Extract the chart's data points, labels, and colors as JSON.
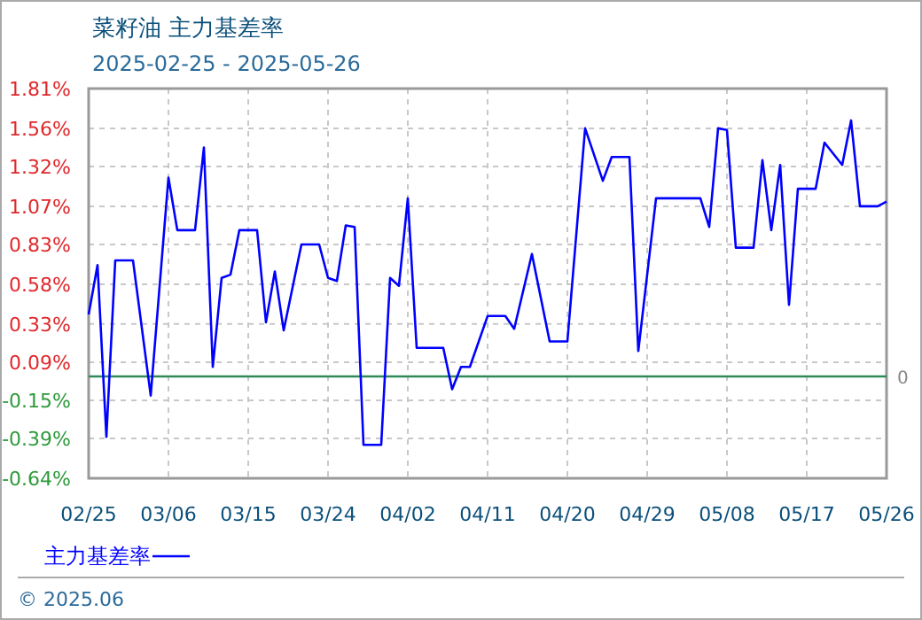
{
  "chart_data": {
    "type": "line",
    "title": "菜籽油 主力基差率",
    "subtitle": "2025-02-25 - 2025-05-26",
    "annotations": [
      "© 2025.06"
    ],
    "x": [
      "2025-02-25",
      "2025-02-26",
      "2025-02-27",
      "2025-02-28",
      "2025-03-02",
      "2025-03-04",
      "2025-03-06",
      "2025-03-07",
      "2025-03-09",
      "2025-03-10",
      "2025-03-11",
      "2025-03-12",
      "2025-03-13",
      "2025-03-14",
      "2025-03-16",
      "2025-03-17",
      "2025-03-18",
      "2025-03-19",
      "2025-03-21",
      "2025-03-23",
      "2025-03-24",
      "2025-03-25",
      "2025-03-26",
      "2025-03-27",
      "2025-03-28",
      "2025-03-30",
      "2025-03-31",
      "2025-04-01",
      "2025-04-02",
      "2025-04-03",
      "2025-04-06",
      "2025-04-07",
      "2025-04-08",
      "2025-04-09",
      "2025-04-11",
      "2025-04-13",
      "2025-04-14",
      "2025-04-16",
      "2025-04-18",
      "2025-04-20",
      "2025-04-22",
      "2025-04-24",
      "2025-04-25",
      "2025-04-27",
      "2025-04-28",
      "2025-04-30",
      "2025-05-05",
      "2025-05-06",
      "2025-05-07",
      "2025-05-08",
      "2025-05-09",
      "2025-05-11",
      "2025-05-12",
      "2025-05-13",
      "2025-05-14",
      "2025-05-15",
      "2025-05-16",
      "2025-05-18",
      "2025-05-19",
      "2025-05-21",
      "2025-05-22",
      "2025-05-23",
      "2025-05-25",
      "2025-05-26"
    ],
    "series": [
      {
        "name": "主力基差率",
        "color": "#0000ff",
        "values": [
          0.39,
          0.7,
          -0.38,
          0.73,
          0.73,
          -0.12,
          1.25,
          0.92,
          0.92,
          1.44,
          0.06,
          0.62,
          0.64,
          0.92,
          0.92,
          0.34,
          0.66,
          0.29,
          0.83,
          0.83,
          0.62,
          0.6,
          0.95,
          0.94,
          -0.43,
          -0.43,
          0.62,
          0.57,
          1.12,
          0.18,
          0.18,
          -0.08,
          0.06,
          0.06,
          0.38,
          0.38,
          0.3,
          0.77,
          0.22,
          0.22,
          1.56,
          1.23,
          1.38,
          1.38,
          0.16,
          1.12,
          1.12,
          0.94,
          1.56,
          1.55,
          0.81,
          0.81,
          1.36,
          0.92,
          1.33,
          0.45,
          1.18,
          1.18,
          1.47,
          1.33,
          1.61,
          1.07,
          1.07,
          1.1
        ]
      }
    ],
    "xlim": [
      "2025-02-25",
      "2025-05-26"
    ],
    "xticks": [
      {
        "value": "2025-02-25",
        "label": "02/25"
      },
      {
        "value": "2025-03-06",
        "label": "03/06"
      },
      {
        "value": "2025-03-15",
        "label": "03/15"
      },
      {
        "value": "2025-03-24",
        "label": "03/24"
      },
      {
        "value": "2025-04-02",
        "label": "04/02"
      },
      {
        "value": "2025-04-11",
        "label": "04/11"
      },
      {
        "value": "2025-04-20",
        "label": "04/20"
      },
      {
        "value": "2025-04-29",
        "label": "04/29"
      },
      {
        "value": "2025-05-08",
        "label": "05/08"
      },
      {
        "value": "2025-05-17",
        "label": "05/17"
      },
      {
        "value": "2025-05-26",
        "label": "05/26"
      }
    ],
    "ylim": [
      -0.64,
      1.81
    ],
    "yticks": [
      {
        "value": 1.81,
        "label": "1.81%"
      },
      {
        "value": 1.56,
        "label": "1.56%"
      },
      {
        "value": 1.32,
        "label": "1.32%"
      },
      {
        "value": 1.07,
        "label": "1.07%"
      },
      {
        "value": 0.83,
        "label": "0.83%"
      },
      {
        "value": 0.58,
        "label": "0.58%"
      },
      {
        "value": 0.33,
        "label": "0.33%"
      },
      {
        "value": 0.09,
        "label": "0.09%"
      },
      {
        "value": -0.15,
        "label": "-0.15%"
      },
      {
        "value": -0.39,
        "label": "-0.39%"
      },
      {
        "value": -0.64,
        "label": "-0.64%"
      }
    ],
    "ref_lines": [
      {
        "axis": "y",
        "value": 0,
        "label": "0",
        "color": "#2e8b57"
      }
    ],
    "grid": true,
    "legend": "bottom left",
    "line_style": "solid",
    "marker": "none"
  }
}
